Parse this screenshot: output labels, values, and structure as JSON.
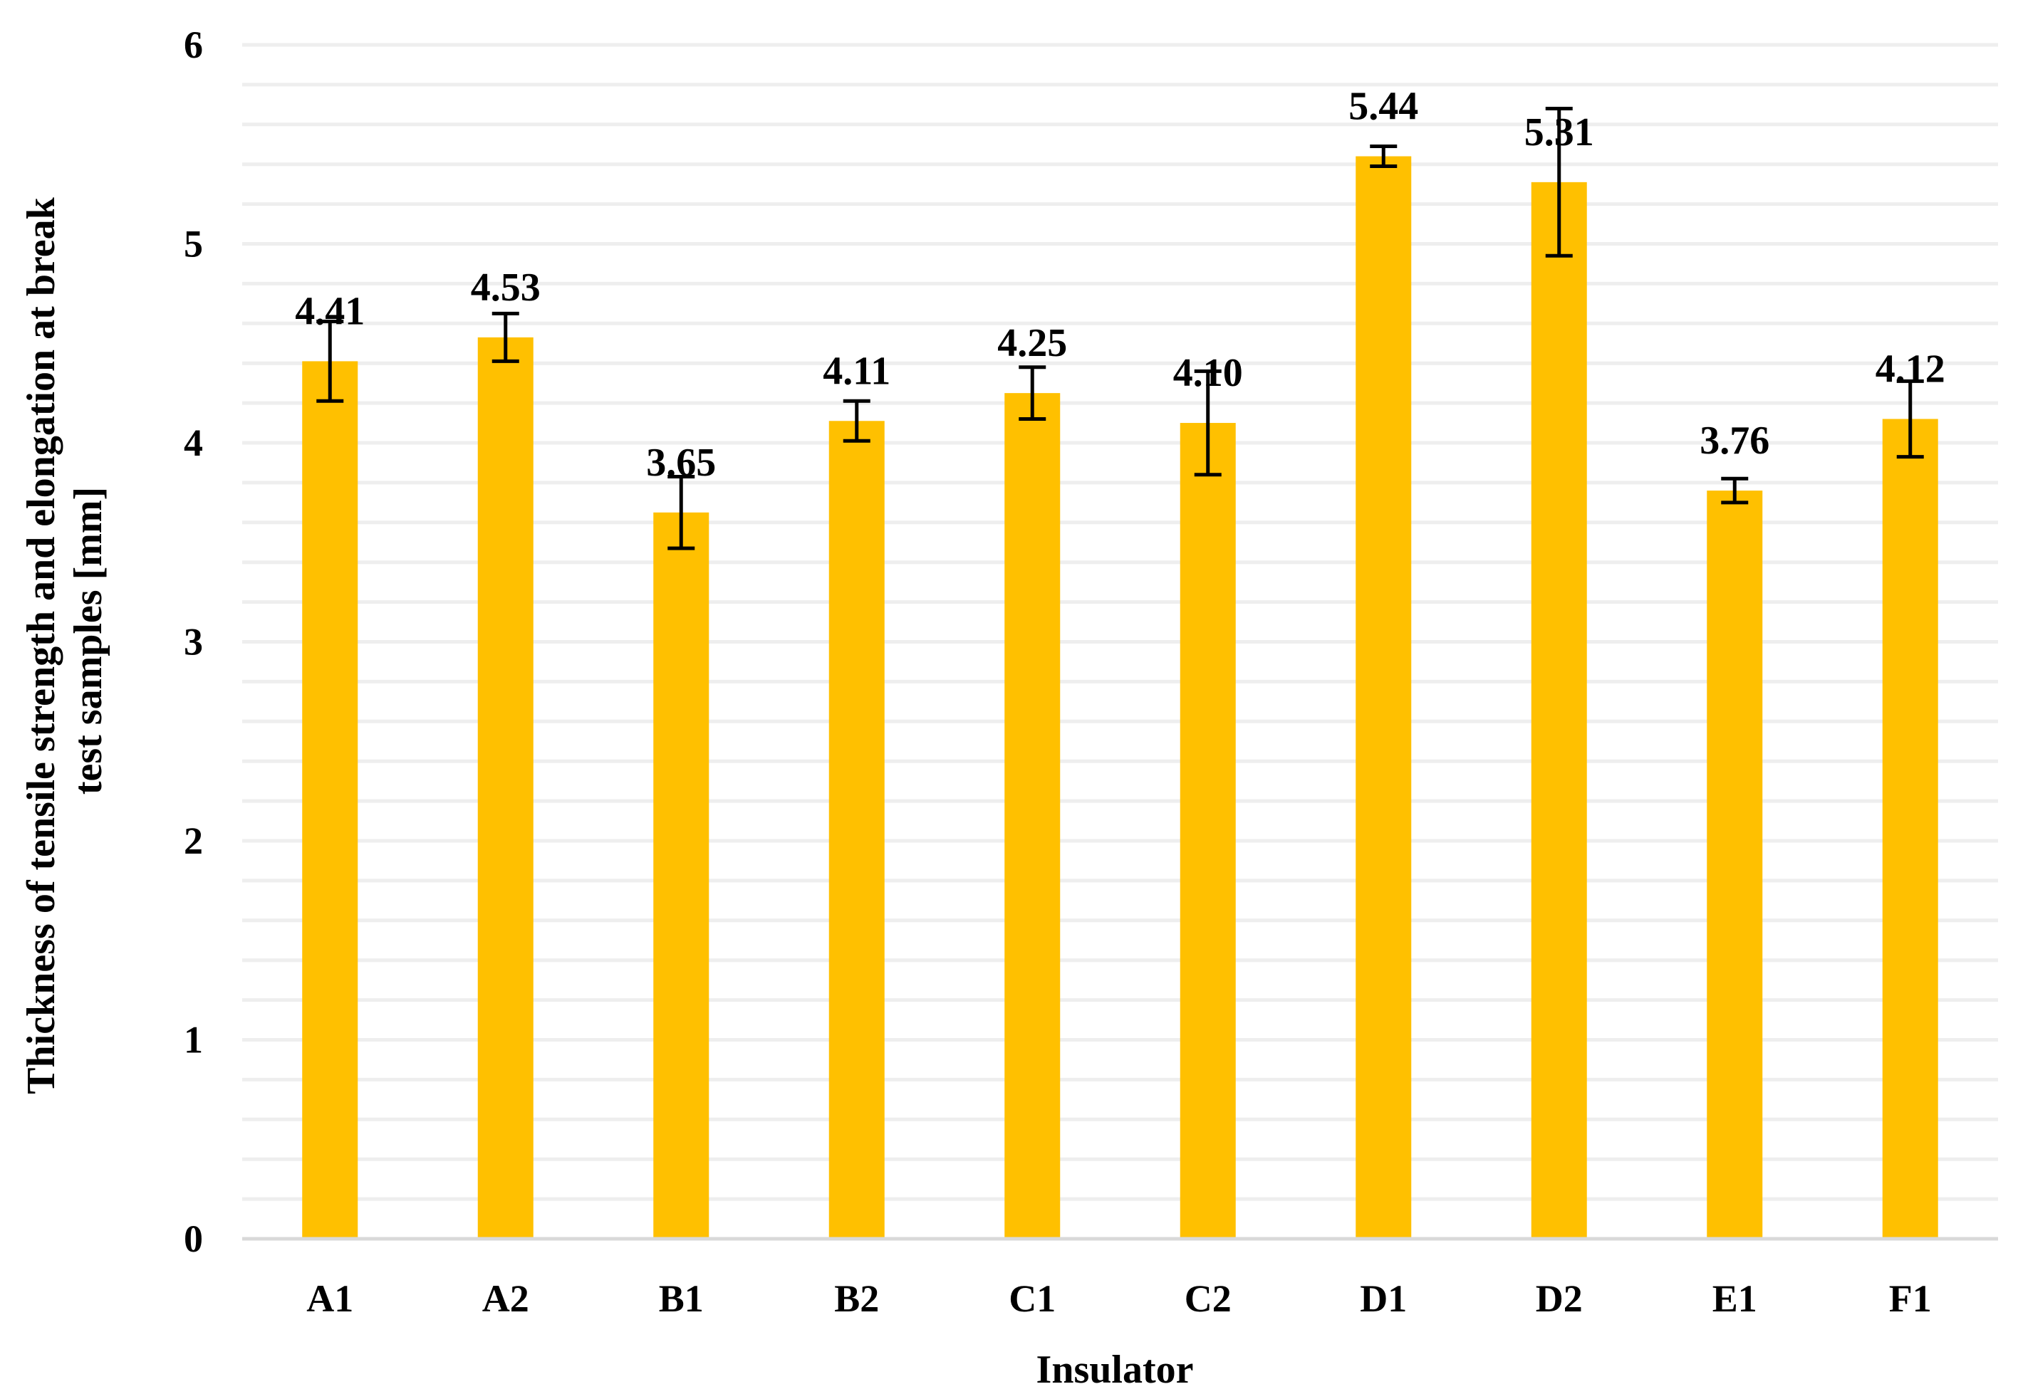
{
  "colors": {
    "bar": "#FFC000",
    "grid": "#EEEEEE",
    "axis": "#D9D9D9",
    "error_bar": "#000000",
    "text": "#000000"
  },
  "chart_data": {
    "type": "bar",
    "title": "",
    "xlabel": "Insulator",
    "ylabel_lines": [
      "Thickness of tensile strength and elongation at break",
      "test samples [mm]"
    ],
    "categories": [
      "A1",
      "A2",
      "B1",
      "B2",
      "C1",
      "C2",
      "D1",
      "D2",
      "E1",
      "F1"
    ],
    "values": [
      4.41,
      4.53,
      3.65,
      4.11,
      4.25,
      4.1,
      5.44,
      5.31,
      3.76,
      4.12
    ],
    "value_labels": [
      "4.41",
      "4.53",
      "3.65",
      "4.11",
      "4.25",
      "4.10",
      "5.44",
      "5.31",
      "3.76",
      "4.12"
    ],
    "error": [
      0.2,
      0.12,
      0.18,
      0.1,
      0.13,
      0.26,
      0.05,
      0.37,
      0.06,
      0.19
    ],
    "ylim": [
      0,
      6
    ],
    "yticks": [
      "0",
      "1",
      "2",
      "3",
      "4",
      "5",
      "6"
    ],
    "minor_grid_step": 0.2,
    "grid": true,
    "legend": "none"
  }
}
